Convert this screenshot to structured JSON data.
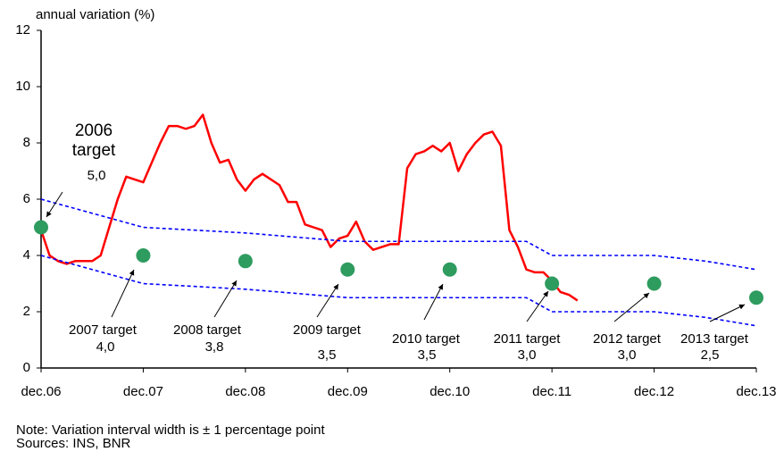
{
  "chart_data": {
    "type": "line",
    "title": "annual variation (%)",
    "xlim": [
      0,
      84
    ],
    "xticks": [
      {
        "value": 0,
        "label": "dec.06"
      },
      {
        "value": 12,
        "label": "dec.07"
      },
      {
        "value": 24,
        "label": "dec.08"
      },
      {
        "value": 36,
        "label": "dec.09"
      },
      {
        "value": 48,
        "label": "dec.10"
      },
      {
        "value": 60,
        "label": "dec.11"
      },
      {
        "value": 72,
        "label": "dec.12"
      },
      {
        "value": 84,
        "label": "dec.13"
      }
    ],
    "ylim": [
      0,
      12
    ],
    "yticks": [
      0,
      2,
      4,
      6,
      8,
      10,
      12
    ],
    "series": [
      {
        "type": "line",
        "color": "#ff0000",
        "x": [
          0,
          1,
          2,
          3,
          4,
          5,
          6,
          7,
          8,
          9,
          10,
          11,
          12,
          13,
          14,
          15,
          16,
          17,
          18,
          19,
          20,
          21,
          22,
          23,
          24,
          25,
          26,
          27,
          28,
          29,
          30,
          31,
          32,
          33,
          34,
          35,
          36,
          37,
          38,
          39,
          40,
          41,
          42,
          43,
          44,
          45,
          46,
          47,
          48,
          49,
          50,
          51,
          52,
          53,
          54,
          55,
          56,
          57,
          58,
          59,
          60,
          61,
          62,
          63
        ],
        "values": [
          4.9,
          4.0,
          3.8,
          3.7,
          3.8,
          3.8,
          3.8,
          4.0,
          5.0,
          6.0,
          6.8,
          6.7,
          6.6,
          7.3,
          8.0,
          8.6,
          8.6,
          8.5,
          8.6,
          9.0,
          8.0,
          7.3,
          7.4,
          6.7,
          6.3,
          6.7,
          6.9,
          6.7,
          6.5,
          5.9,
          5.9,
          5.1,
          5.0,
          4.9,
          4.3,
          4.6,
          4.7,
          5.2,
          4.5,
          4.2,
          4.3,
          4.4,
          4.4,
          7.1,
          7.6,
          7.7,
          7.9,
          7.7,
          8.0,
          7.0,
          7.6,
          8.0,
          8.3,
          8.4,
          7.9,
          4.9,
          4.3,
          3.5,
          3.4,
          3.4,
          3.1,
          2.7,
          2.6,
          2.4
        ]
      },
      {
        "type": "band",
        "color": "#0000ff",
        "x": [
          0,
          12,
          24,
          36,
          48,
          57,
          60,
          72,
          78,
          84
        ],
        "values": [
          6.0,
          5.0,
          4.8,
          4.5,
          4.5,
          4.5,
          4.0,
          4.0,
          3.8,
          3.5
        ]
      },
      {
        "type": "band",
        "color": "#0000ff",
        "x": [
          0,
          12,
          24,
          36,
          48,
          57,
          60,
          72,
          78,
          84
        ],
        "values": [
          4.0,
          3.0,
          2.8,
          2.5,
          2.5,
          2.5,
          2.0,
          2.0,
          1.8,
          1.5
        ]
      },
      {
        "type": "scatter",
        "color": "#2e9b5f",
        "x": [
          0,
          12,
          24,
          36,
          48,
          60,
          72,
          84
        ],
        "values": [
          5.0,
          4.0,
          3.8,
          3.5,
          3.5,
          3.0,
          3.0,
          2.5
        ],
        "value_labels": [
          "5,0",
          "4,0",
          "3,8",
          "3,5",
          "3,5",
          "3,0",
          "3,0",
          "2,5"
        ]
      }
    ],
    "target_labels": [
      "2006 target",
      "2007 target",
      "2008 target",
      "2009 target",
      "2010 target",
      "2011 target",
      "2012 target",
      "2013 target"
    ],
    "notes": [
      "Note: Variation interval width is ± 1 percentage point",
      "Sources: INS, BNR"
    ]
  }
}
